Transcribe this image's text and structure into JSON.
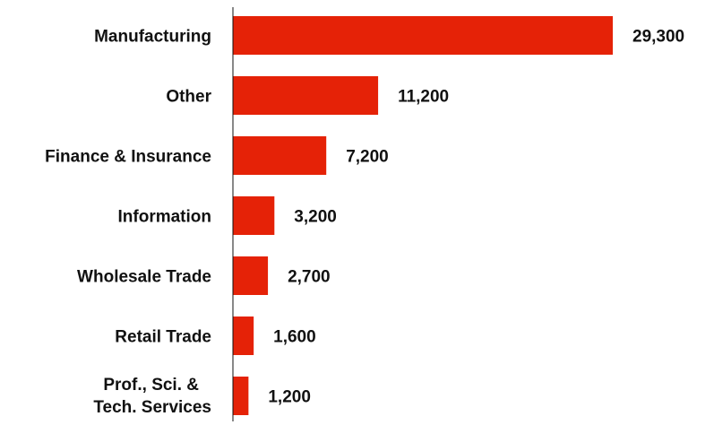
{
  "chart_data": {
    "type": "bar",
    "orientation": "horizontal",
    "categories": [
      "Manufacturing",
      "Other",
      "Finance & Insurance",
      "Information",
      "Wholesale Trade",
      "Retail Trade",
      "Prof., Sci. & Tech. Services"
    ],
    "category_lines": [
      [
        "Manufacturing"
      ],
      [
        "Other"
      ],
      [
        "Finance & Insurance"
      ],
      [
        "Information"
      ],
      [
        "Wholesale Trade"
      ],
      [
        "Retail Trade"
      ],
      [
        "Prof., Sci. &",
        "Tech. Services"
      ]
    ],
    "values": [
      29300,
      11200,
      7200,
      3200,
      2700,
      1600,
      1200
    ],
    "value_labels": [
      "29,300",
      "11,200",
      "7,200",
      "3,200",
      "2,700",
      "1,600",
      "1,200"
    ],
    "xlim": [
      0,
      29300
    ],
    "title": "",
    "xlabel": "",
    "ylabel": "",
    "grid": false,
    "legend": "none",
    "bar_color": "#e52207",
    "axis_color": "#111111"
  }
}
